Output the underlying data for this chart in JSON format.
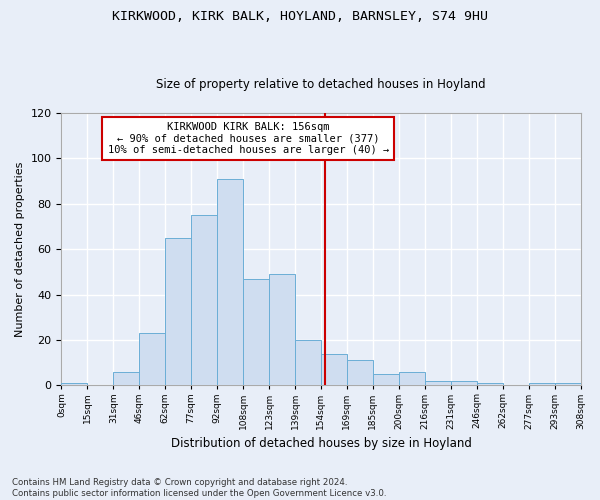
{
  "title": "KIRKWOOD, KIRK BALK, HOYLAND, BARNSLEY, S74 9HU",
  "subtitle": "Size of property relative to detached houses in Hoyland",
  "xlabel": "Distribution of detached houses by size in Hoyland",
  "ylabel": "Number of detached properties",
  "bar_values": [
    1,
    0,
    6,
    23,
    65,
    75,
    91,
    47,
    49,
    20,
    14,
    11,
    5,
    6,
    2,
    2,
    1,
    0,
    1,
    1
  ],
  "bin_labels": [
    "0sqm",
    "15sqm",
    "31sqm",
    "46sqm",
    "62sqm",
    "77sqm",
    "92sqm",
    "108sqm",
    "123sqm",
    "139sqm",
    "154sqm",
    "169sqm",
    "185sqm",
    "200sqm",
    "216sqm",
    "231sqm",
    "246sqm",
    "262sqm",
    "277sqm",
    "293sqm",
    "308sqm"
  ],
  "bar_color": "#cfddf0",
  "bar_edge_color": "#6baed6",
  "background_color": "#e8eef8",
  "grid_color": "#ffffff",
  "annotation_text": "KIRKWOOD KIRK BALK: 156sqm\n← 90% of detached houses are smaller (377)\n10% of semi-detached houses are larger (40) →",
  "vline_x": 10.15,
  "vline_color": "#cc0000",
  "annotation_box_color": "#cc0000",
  "footer_text": "Contains HM Land Registry data © Crown copyright and database right 2024.\nContains public sector information licensed under the Open Government Licence v3.0.",
  "ylim": [
    0,
    120
  ],
  "yticks": [
    0,
    20,
    40,
    60,
    80,
    100,
    120
  ]
}
